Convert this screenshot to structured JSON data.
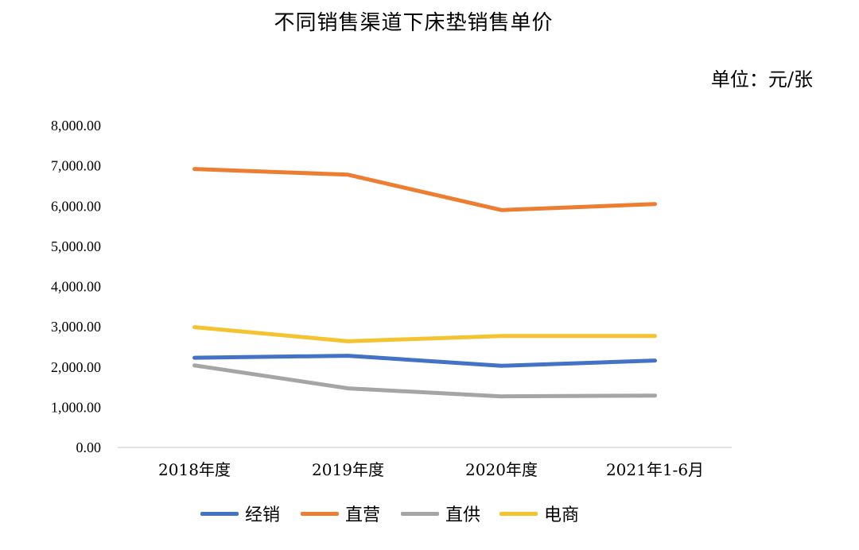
{
  "chart_data": {
    "type": "line",
    "title": "不同销售渠道下床垫销售单价",
    "unit_label": "单位：元/张",
    "categories": [
      "2018年度",
      "2019年度",
      "2020年度",
      "2021年1-6月"
    ],
    "ylim": [
      0,
      8000
    ],
    "yticks": [
      "0.00",
      "1,000.00",
      "2,000.00",
      "3,000.00",
      "4,000.00",
      "5,000.00",
      "6,000.00",
      "7,000.00",
      "8,000.00"
    ],
    "ytick_values": [
      0,
      1000,
      2000,
      3000,
      4000,
      5000,
      6000,
      7000,
      8000
    ],
    "grid": false,
    "legend_position": "bottom",
    "series": [
      {
        "name": "经销",
        "color": "#4472C4",
        "values": [
          2230,
          2280,
          2030,
          2160
        ]
      },
      {
        "name": "直营",
        "color": "#ED7D31",
        "values": [
          6920,
          6780,
          5900,
          6050
        ]
      },
      {
        "name": "直供",
        "color": "#A5A5A5",
        "values": [
          2040,
          1470,
          1270,
          1290
        ]
      },
      {
        "name": "电商",
        "color": "#F4C430",
        "values": [
          2990,
          2640,
          2770,
          2770
        ]
      }
    ]
  }
}
